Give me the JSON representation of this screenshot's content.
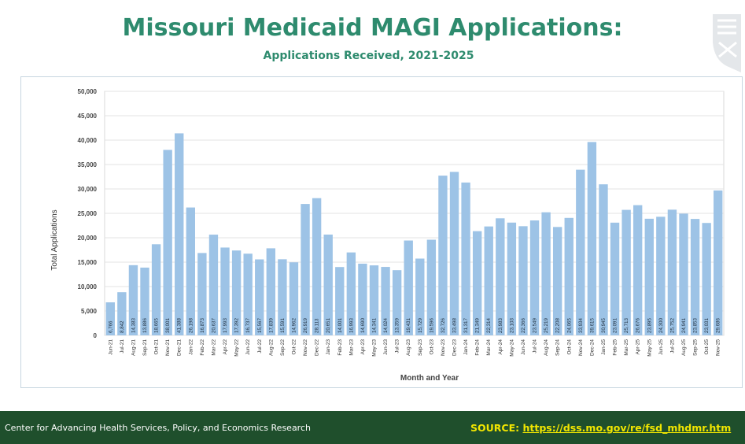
{
  "header": {
    "title": "Missouri Medicaid MAGI Applications:",
    "subtitle": "Applications Received, 2021-2025"
  },
  "footer": {
    "org": "Center for Advancing Health Services, Policy, and Economics Research",
    "source_label": "SOURCE:",
    "source_url": "https://dss.mo.gov/re/fsd_mhdmr.htm"
  },
  "colors": {
    "bar": "#9dc3e6",
    "title": "#2e8b6e",
    "footer_bg": "#1f4f2c",
    "footer_link": "#f2e600"
  },
  "chart_data": {
    "type": "bar",
    "title": "",
    "xlabel": "Month and Year",
    "ylabel": "Total Applications",
    "ylim": [
      0,
      50000
    ],
    "yticks": [
      "0",
      "5,000",
      "10,000",
      "15,000",
      "20,000",
      "25,000",
      "30,000",
      "35,000",
      "40,000",
      "45,000",
      "50,000"
    ],
    "grid": true,
    "categories": [
      "Jun-21",
      "Jul-21",
      "Aug-21",
      "Sep-21",
      "Oct-21",
      "Nov-21",
      "Dec-21",
      "Jan-22",
      "Feb-22",
      "Mar-22",
      "Apr-22",
      "May-22",
      "Jun-22",
      "Jul-22",
      "Aug-22",
      "Sep-22",
      "Oct-22",
      "Nov-22",
      "Dec-22",
      "Jan-23",
      "Feb-23",
      "Mar-23",
      "Apr-23",
      "May-23",
      "Jun-23",
      "Jul-23",
      "Aug-23",
      "Sep-23",
      "Oct-23",
      "Nov-23",
      "Dec-23",
      "Jan-24",
      "Feb-24",
      "Mar-24",
      "Apr-24",
      "May-24",
      "Jun-24",
      "Jul-24",
      "Aug-24",
      "Sep-24",
      "Oct-24",
      "Nov-24",
      "Dec-24",
      "Jan-25",
      "Feb-25",
      "Mar-25",
      "Apr-25",
      "May-25",
      "Jun-25",
      "Jul-25",
      "Aug-25",
      "Sep-25",
      "Oct-25",
      "Nov-25"
    ],
    "values": [
      6766,
      8842,
      14383,
      13886,
      18665,
      38001,
      41388,
      26198,
      16873,
      20637,
      17993,
      17392,
      16737,
      15567,
      17839,
      15591,
      14962,
      26919,
      28113,
      20651,
      14001,
      16993,
      14690,
      14341,
      14024,
      13359,
      19431,
      15729,
      19596,
      32726,
      33498,
      31317,
      21349,
      22314,
      23983,
      23103,
      22366,
      23549,
      25219,
      22208,
      24065,
      33934,
      39615,
      30945,
      23091,
      25713,
      26676,
      23895,
      24300,
      25752,
      24941,
      23853,
      23031,
      29686
    ],
    "labels": [
      "6,766",
      "8,842",
      "14,383",
      "13,886",
      "18,665",
      "38,001",
      "41,388",
      "26,198",
      "16,873",
      "20,637",
      "17,993",
      "17,392",
      "16,737",
      "15,567",
      "17,839",
      "15,591",
      "14,962",
      "26,919",
      "28,113",
      "20,651",
      "14,001",
      "16,993",
      "14,690",
      "14,341",
      "14,024",
      "13,359",
      "19,431",
      "15,729",
      "19,596",
      "32,726",
      "33,498",
      "31,317",
      "21,349",
      "22,314",
      "23,983",
      "23,103",
      "22,366",
      "23,549",
      "25,219",
      "22,208",
      "24,065",
      "33,934",
      "39,615",
      "30,945",
      "23,091",
      "25,713",
      "26,676",
      "23,895",
      "24,300",
      "25,752",
      "24,941",
      "23,853",
      "23,031",
      "29,686"
    ]
  }
}
